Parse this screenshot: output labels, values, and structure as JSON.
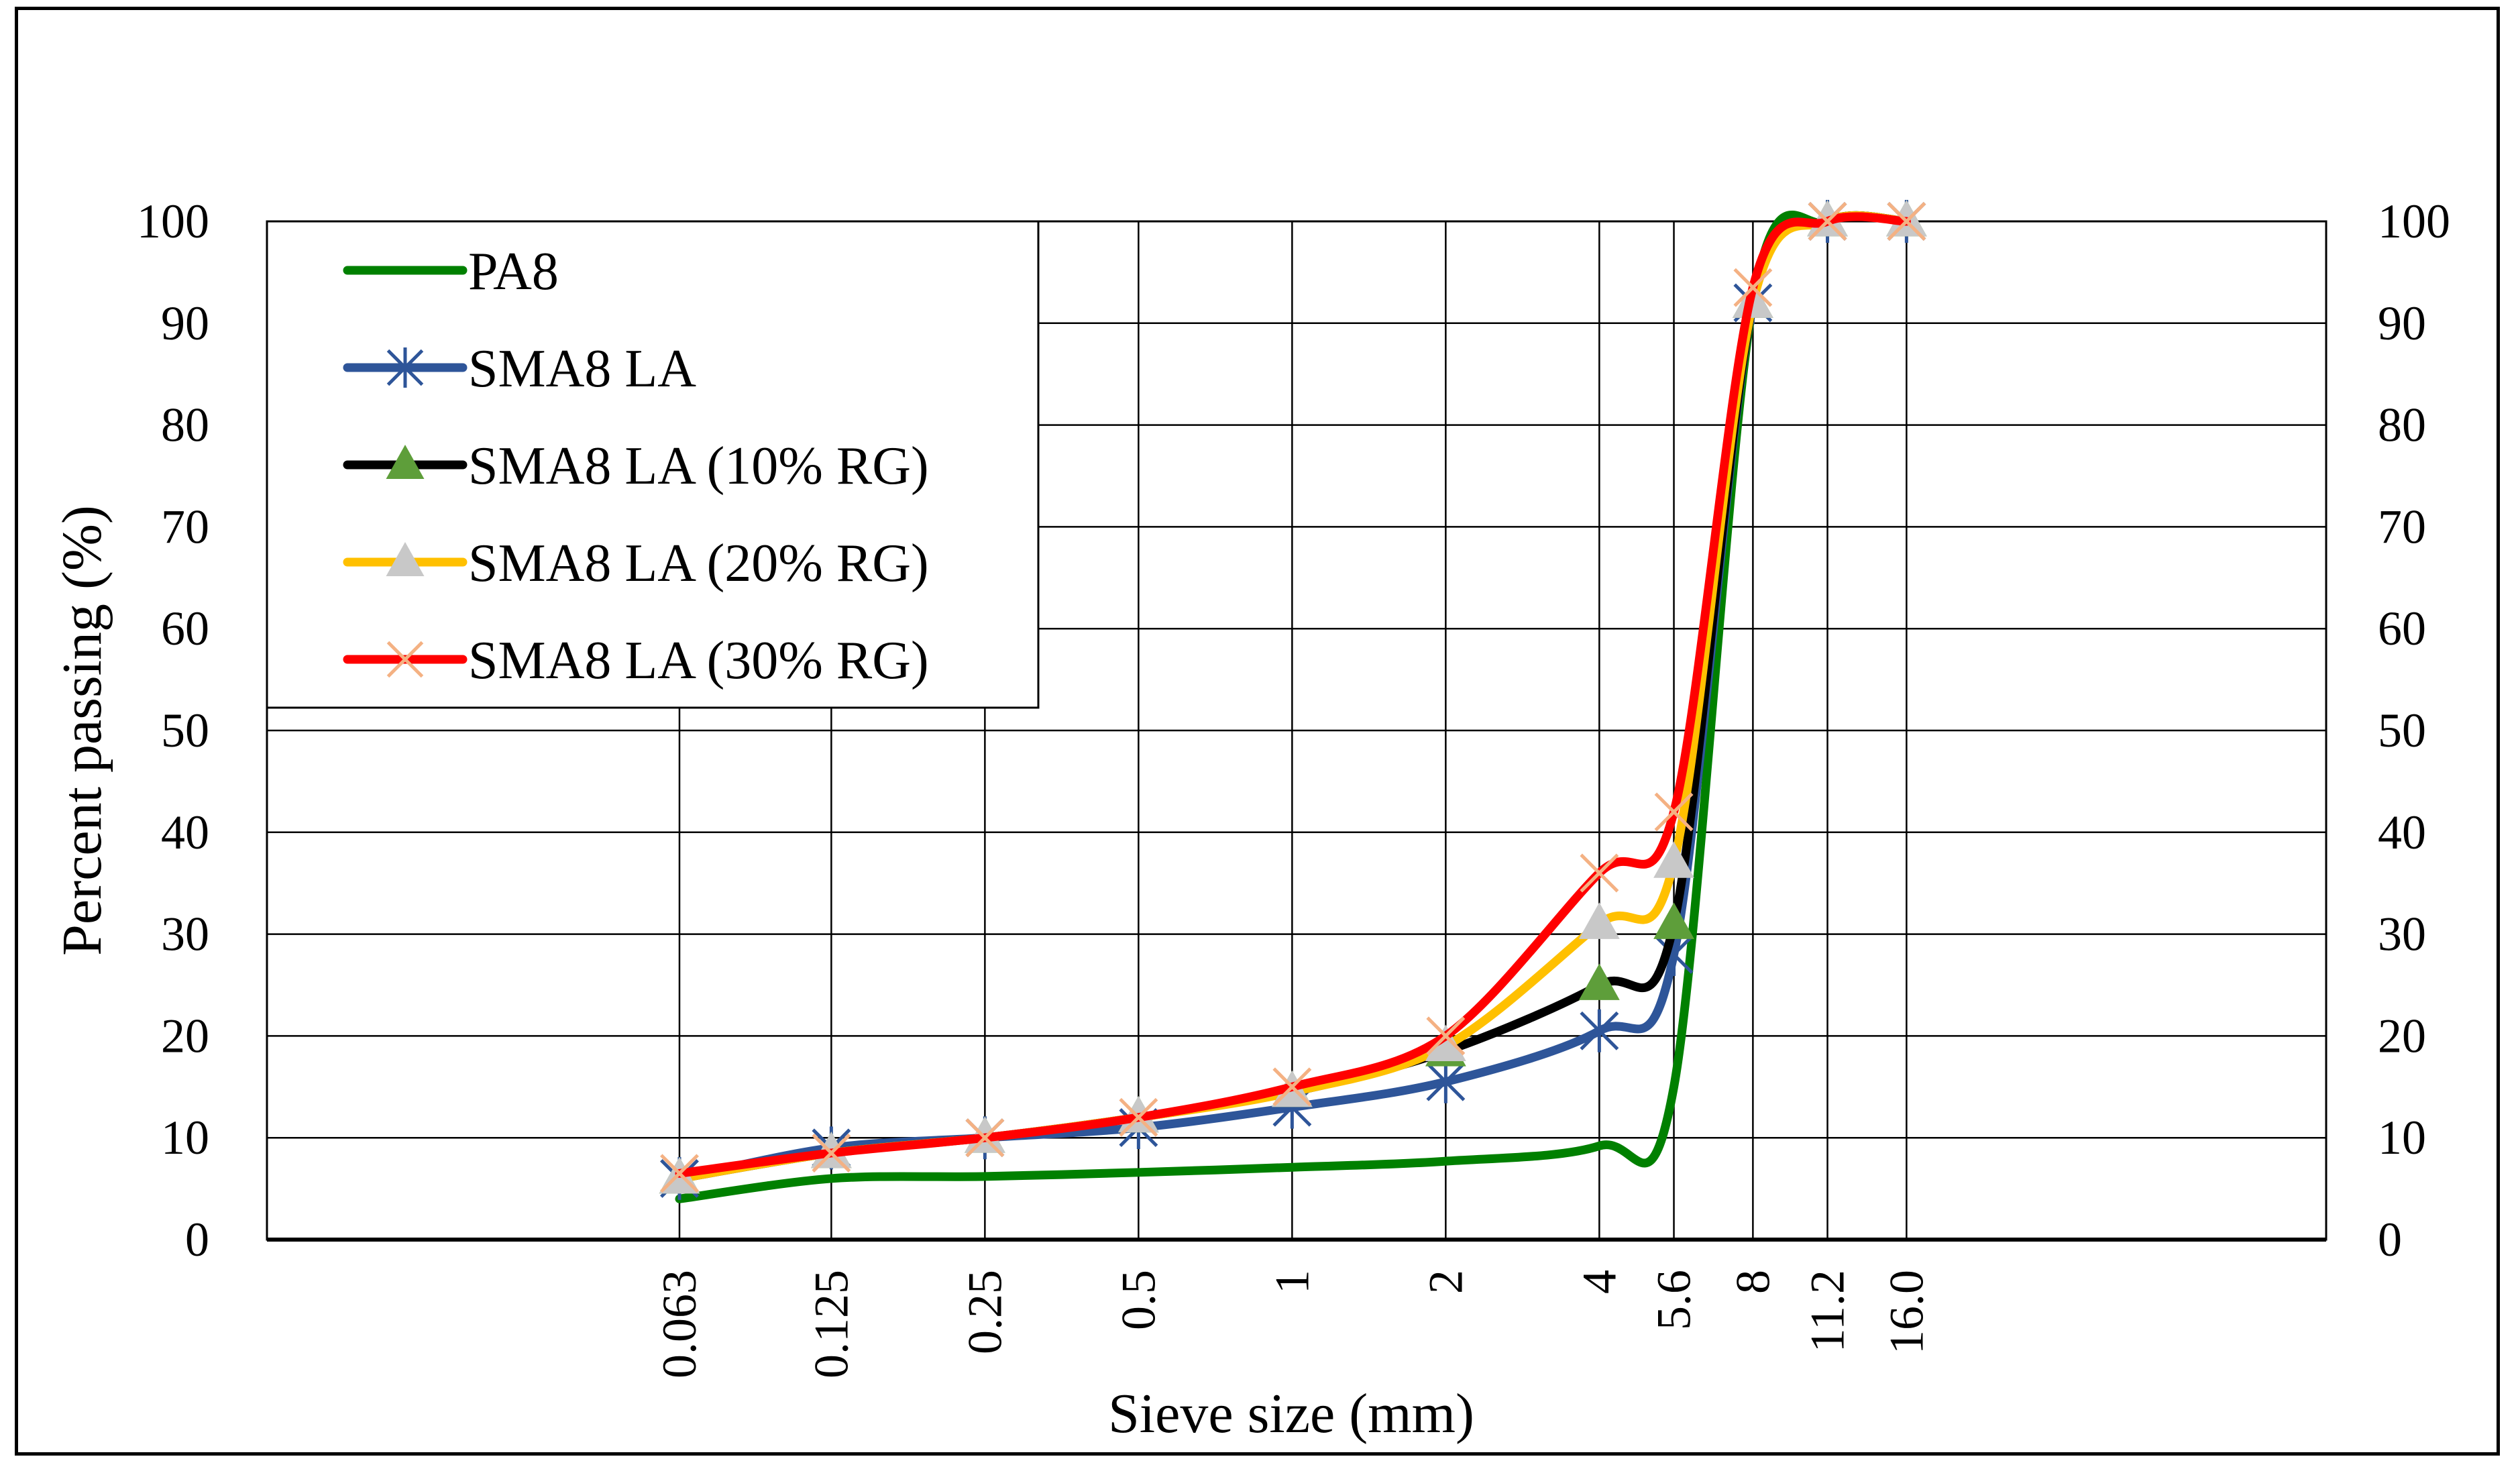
{
  "chart_data": {
    "type": "line",
    "title": "",
    "xlabel": "Sieve size (mm)",
    "ylabel": "Percent passing (%)",
    "ylim": [
      0,
      100
    ],
    "y_ticks": [
      "0",
      "10",
      "20",
      "30",
      "40",
      "50",
      "60",
      "70",
      "80",
      "90",
      "100"
    ],
    "y_ticks_right": [
      "0",
      "10",
      "20",
      "30",
      "40",
      "50",
      "60",
      "70",
      "80",
      "90",
      "100"
    ],
    "x_scale": "log2",
    "x_ticks": [
      {
        "label": "0.063",
        "value": 0.063
      },
      {
        "label": "0.125",
        "value": 0.125
      },
      {
        "label": "0.25",
        "value": 0.25
      },
      {
        "label": "0.5",
        "value": 0.5
      },
      {
        "label": "1",
        "value": 1
      },
      {
        "label": "2",
        "value": 2
      },
      {
        "label": "4",
        "value": 4
      },
      {
        "label": "5.6",
        "value": 5.6
      },
      {
        "label": "8",
        "value": 8
      },
      {
        "label": "11.2",
        "value": 11.2
      },
      {
        "label": "16.0",
        "value": 16.0
      }
    ],
    "grid": true,
    "legend_position": "top-left",
    "series": [
      {
        "name": "PA8",
        "color": "#008000",
        "marker": "none",
        "points": [
          [
            0.063,
            4
          ],
          [
            0.125,
            6
          ],
          [
            0.25,
            6.2
          ],
          [
            0.5,
            6.6
          ],
          [
            1,
            7.1
          ],
          [
            2,
            7.7
          ],
          [
            4,
            9.2
          ],
          [
            5.6,
            15
          ],
          [
            8,
            92
          ],
          [
            11.2,
            100
          ],
          [
            16.0,
            100
          ]
        ]
      },
      {
        "name": "SMA8 LA",
        "color": "#2E5599",
        "marker": "asterisk",
        "points": [
          [
            0.063,
            6
          ],
          [
            0.125,
            9
          ],
          [
            0.25,
            10
          ],
          [
            0.5,
            11
          ],
          [
            1,
            13
          ],
          [
            2,
            15.5
          ],
          [
            4,
            20.5
          ],
          [
            5.6,
            28
          ],
          [
            8,
            92
          ],
          [
            11.2,
            100
          ],
          [
            16.0,
            100
          ]
        ]
      },
      {
        "name": "SMA8 LA (10% RG)",
        "color": "#000000",
        "marker": "triangle",
        "marker_color": "#5E9E3A",
        "points": [
          [
            0.063,
            6
          ],
          [
            0.125,
            8.5
          ],
          [
            0.25,
            10
          ],
          [
            0.5,
            12
          ],
          [
            1,
            14.5
          ],
          [
            2,
            18.5
          ],
          [
            4,
            25
          ],
          [
            5.6,
            31
          ],
          [
            8,
            92
          ],
          [
            11.2,
            100
          ],
          [
            16.0,
            100
          ]
        ]
      },
      {
        "name": "SMA8 LA (20% RG)",
        "color": "#FFC000",
        "marker": "triangle",
        "marker_color": "#C8C8C8",
        "points": [
          [
            0.063,
            6
          ],
          [
            0.125,
            8.5
          ],
          [
            0.25,
            10
          ],
          [
            0.5,
            12
          ],
          [
            1,
            14.5
          ],
          [
            2,
            19
          ],
          [
            4,
            31
          ],
          [
            5.6,
            37
          ],
          [
            8,
            92
          ],
          [
            11.2,
            100
          ],
          [
            16.0,
            100
          ]
        ]
      },
      {
        "name": "SMA8 LA (30% RG)",
        "color": "#FF0000",
        "marker": "x",
        "marker_color": "#F4B183",
        "points": [
          [
            0.063,
            6.5
          ],
          [
            0.125,
            8.5
          ],
          [
            0.25,
            10
          ],
          [
            0.5,
            12
          ],
          [
            1,
            15
          ],
          [
            2,
            20
          ],
          [
            4,
            36
          ],
          [
            5.6,
            42
          ],
          [
            8,
            93.5
          ],
          [
            11.2,
            100
          ],
          [
            16.0,
            100
          ]
        ]
      }
    ]
  }
}
